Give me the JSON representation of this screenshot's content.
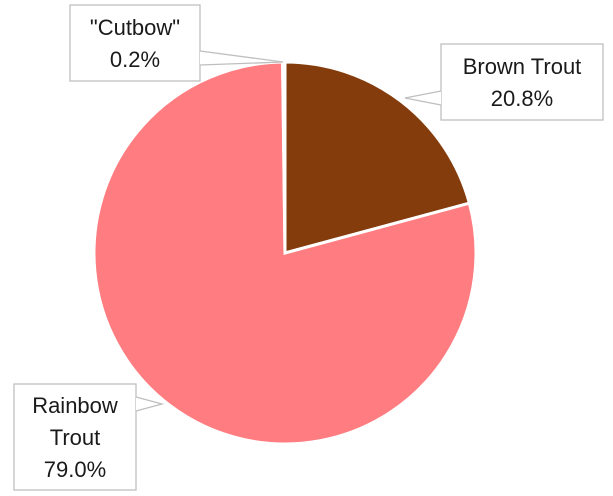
{
  "chart_data": {
    "type": "pie",
    "categories": [
      "Brown Trout",
      "Rainbow Trout",
      "\"Cutbow\""
    ],
    "values": [
      20.8,
      79.0,
      0.2
    ],
    "unit": "%",
    "colors": [
      "#843C0C",
      "#FF7C80",
      "#FF7C80"
    ],
    "data_labels": [
      [
        "Brown Trout",
        "20.8%"
      ],
      [
        "Rainbow",
        "Trout",
        "79.0%"
      ],
      [
        "\"Cutbow\"",
        "0.2%"
      ]
    ],
    "start_angle_deg": 0,
    "direction": "clockwise",
    "legend": "none",
    "label_style": "callout"
  }
}
